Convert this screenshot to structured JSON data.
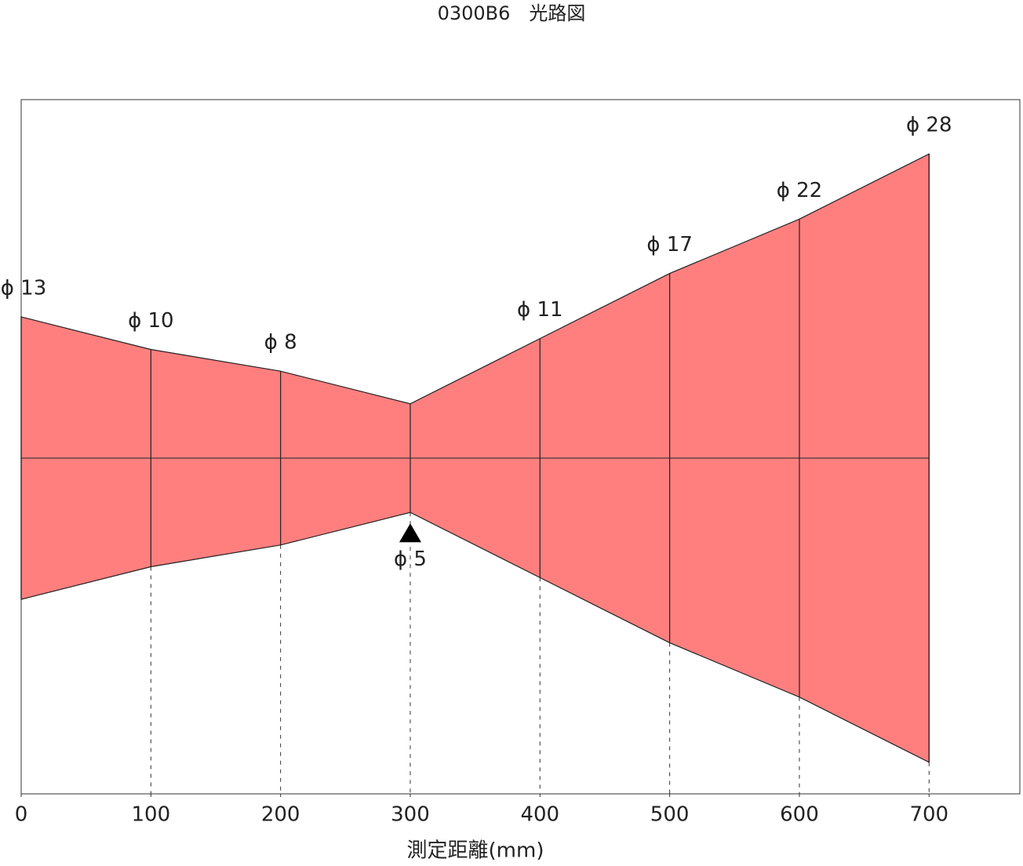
{
  "chart_data": {
    "type": "beam",
    "title": "0300B6　光路図",
    "xlabel": "測定距離(mm)",
    "x": [
      0,
      100,
      200,
      300,
      400,
      500,
      600,
      700
    ],
    "values": [
      13,
      10,
      8,
      5,
      11,
      17,
      22,
      28
    ],
    "value_labels": [
      "ϕ 13",
      "ϕ 10",
      "ϕ 8",
      "ϕ 5",
      "ϕ 11",
      "ϕ 17",
      "ϕ 22",
      "ϕ 28"
    ],
    "color": "#ff7f7f",
    "xlim": [
      0,
      770
    ],
    "xticks": [
      0,
      100,
      200,
      300,
      400,
      500,
      600,
      700
    ]
  }
}
